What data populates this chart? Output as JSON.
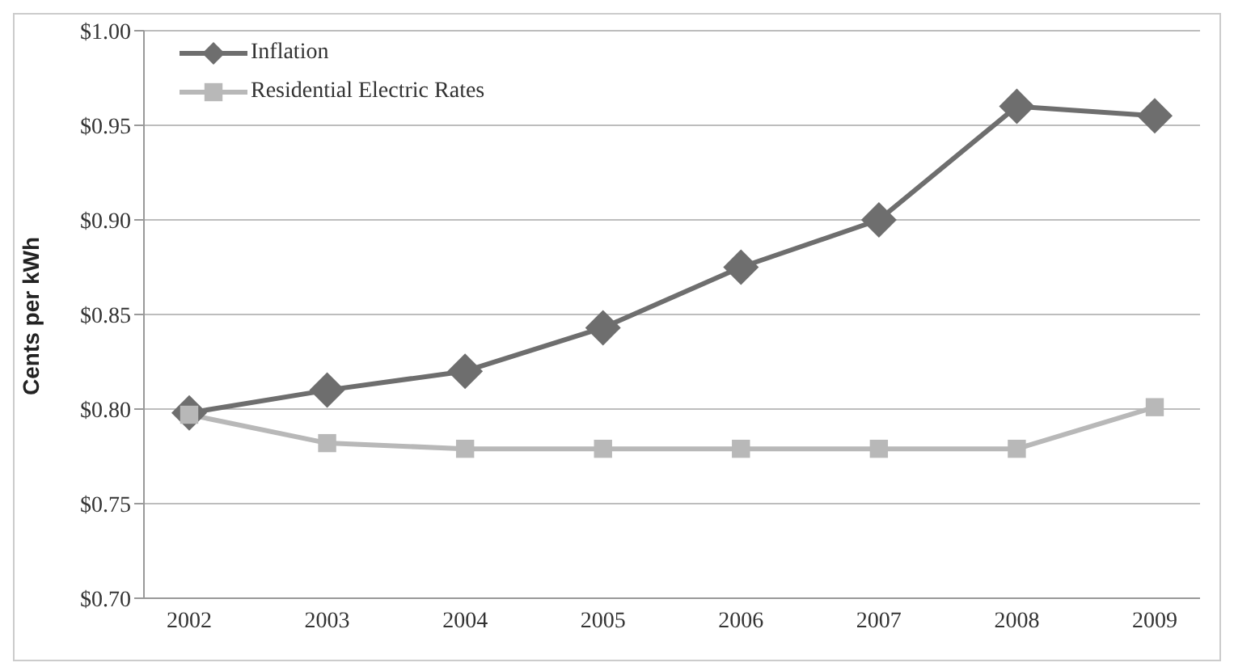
{
  "chart_data": {
    "type": "line",
    "ylabel": "Cents  per kWh",
    "categories": [
      "2002",
      "2003",
      "2004",
      "2005",
      "2006",
      "2007",
      "2008",
      "2009"
    ],
    "series": [
      {
        "name": "Inflation",
        "color": "#6e6e6e",
        "marker": "diamond",
        "values": [
          0.798,
          0.81,
          0.82,
          0.843,
          0.875,
          0.9,
          0.96,
          0.955
        ]
      },
      {
        "name": "Residential Electric Rates",
        "color": "#b8b8b8",
        "marker": "square",
        "values": [
          0.797,
          0.782,
          0.779,
          0.779,
          0.779,
          0.779,
          0.779,
          0.801
        ]
      }
    ],
    "ylim": [
      0.7,
      1.0
    ],
    "yticks": [
      {
        "value": 0.7,
        "label": "$0.70"
      },
      {
        "value": 0.75,
        "label": "$0.75"
      },
      {
        "value": 0.8,
        "label": "$0.80"
      },
      {
        "value": 0.85,
        "label": "$0.85"
      },
      {
        "value": 0.9,
        "label": "$0.90"
      },
      {
        "value": 0.95,
        "label": "$0.95"
      },
      {
        "value": 1.0,
        "label": "$1.00"
      }
    ],
    "grid": "y",
    "legend": "top left",
    "line_style": "solid"
  }
}
